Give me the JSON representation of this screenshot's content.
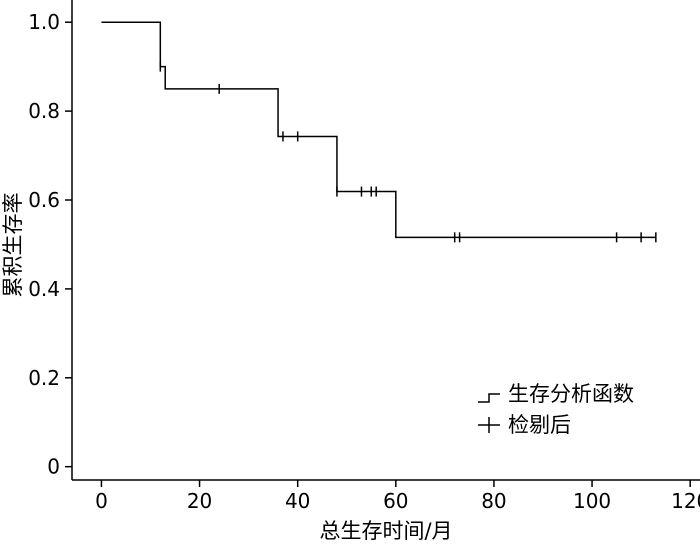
{
  "chart_data": {
    "type": "line",
    "subtype": "kaplan-meier-step",
    "xlabel": "总生存时间/月",
    "ylabel": "累积生存率",
    "xlim": [
      -6,
      122
    ],
    "ylim": [
      -0.03,
      1.05
    ],
    "x_ticks": [
      0,
      20,
      40,
      60,
      80,
      100,
      120
    ],
    "y_ticks": [
      0,
      0.2,
      0.4,
      0.6,
      0.8,
      1.0
    ],
    "x_tick_labels": [
      "0",
      "20",
      "40",
      "60",
      "80",
      "100",
      "120"
    ],
    "y_tick_labels": [
      "0",
      "0.2",
      "0.4",
      "0.6",
      "0.8",
      "1.0"
    ],
    "grid": false,
    "legend_position": "bottom-right",
    "series": [
      {
        "name": "生存分析函数",
        "kind": "step",
        "x": [
          0,
          12,
          13,
          36,
          48,
          60,
          113
        ],
        "y": [
          1.0,
          0.9,
          0.85,
          0.743,
          0.619,
          0.516,
          0.516
        ]
      },
      {
        "name": "检剔后",
        "kind": "censor",
        "x": [
          12,
          24,
          37,
          40,
          48,
          53,
          55,
          56,
          72,
          73,
          105,
          110,
          113
        ],
        "y": [
          0.9,
          0.85,
          0.743,
          0.743,
          0.619,
          0.619,
          0.619,
          0.619,
          0.516,
          0.516,
          0.516,
          0.516,
          0.516
        ]
      }
    ]
  }
}
